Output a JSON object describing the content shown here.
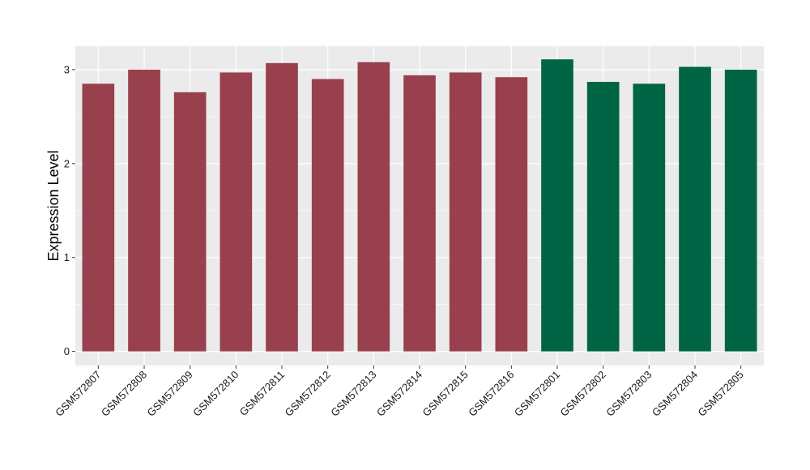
{
  "chart_data": {
    "type": "bar",
    "title": "",
    "xlabel": "",
    "ylabel": "Expression Level",
    "ylim": [
      -0.15,
      3.25
    ],
    "yticks": [
      0,
      1,
      2,
      3
    ],
    "grid": true,
    "legend": "none",
    "categories": [
      "GSM572807",
      "GSM572808",
      "GSM572809",
      "GSM572810",
      "GSM572811",
      "GSM572812",
      "GSM572813",
      "GSM572814",
      "GSM572815",
      "GSM572816",
      "GSM572801",
      "GSM572802",
      "GSM572803",
      "GSM572804",
      "GSM572805"
    ],
    "values": [
      2.85,
      3.0,
      2.76,
      2.97,
      3.07,
      2.9,
      3.08,
      2.94,
      2.97,
      2.92,
      3.11,
      2.87,
      2.85,
      3.03,
      3.0
    ],
    "group": [
      0,
      0,
      0,
      0,
      0,
      0,
      0,
      0,
      0,
      0,
      1,
      1,
      1,
      1,
      1
    ],
    "colors": [
      "#98404e",
      "#006544"
    ],
    "panel_background": "#ebebeb",
    "grid_color": "#ffffff"
  }
}
